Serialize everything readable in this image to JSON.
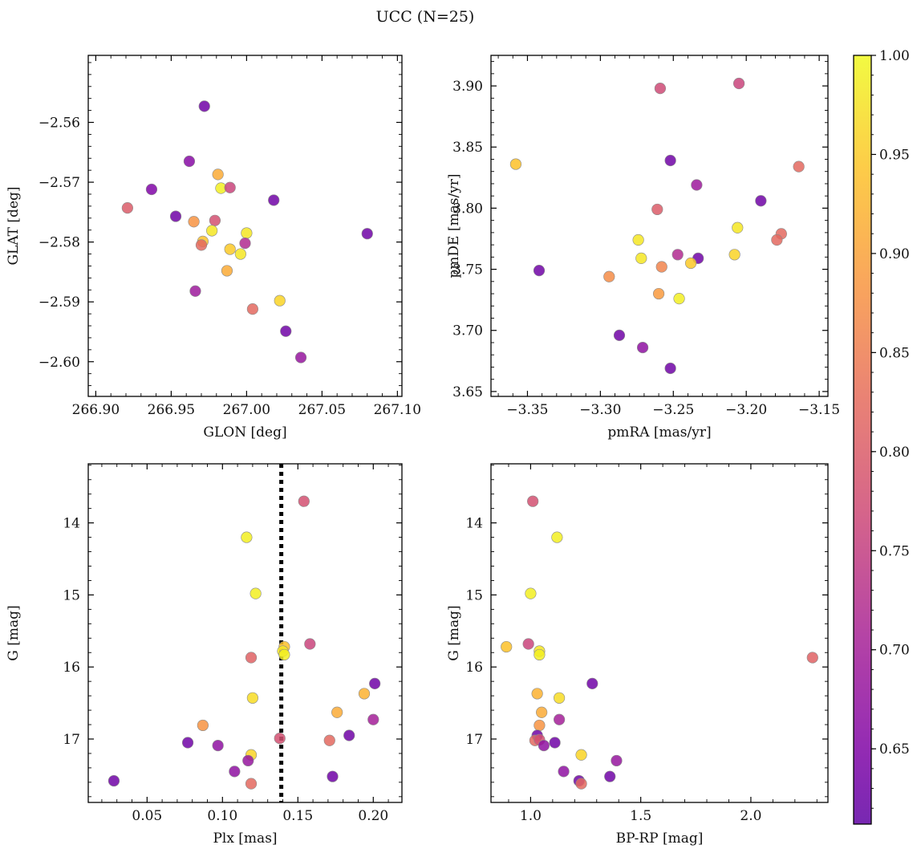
{
  "figure_title": "UCC (N=25)",
  "colorbar": {
    "range": [
      0.612,
      1.0
    ],
    "ticks": [
      0.65,
      0.7,
      0.75,
      0.8,
      0.85,
      0.9,
      0.95,
      1.0
    ],
    "tick_labels": [
      "0.65",
      "0.70",
      "0.75",
      "0.80",
      "0.85",
      "0.90",
      "0.95",
      "1.00"
    ],
    "colormap": "plasma"
  },
  "chart_data": [
    {
      "type": "scatter",
      "id": "glon-glat",
      "xlabel": "GLON [deg]",
      "ylabel": "GLAT [deg]",
      "xlim": [
        266.895,
        267.103
      ],
      "ylim": [
        -2.6058,
        -2.5488
      ],
      "xticks": [
        266.9,
        266.95,
        267.0,
        267.05,
        267.1
      ],
      "xtick_labels": [
        "266.90",
        "266.95",
        "267.00",
        "267.05",
        "267.10"
      ],
      "yticks": [
        -2.56,
        -2.57,
        -2.58,
        -2.59,
        -2.6
      ],
      "ytick_labels": [
        "−2.56",
        "−2.57",
        "−2.58",
        "−2.59",
        "−2.60"
      ],
      "points": [
        {
          "x": 266.972,
          "y": -2.5573,
          "c": 0.63
        },
        {
          "x": 266.962,
          "y": -2.5665,
          "c": 0.66
        },
        {
          "x": 266.937,
          "y": -2.5712,
          "c": 0.65
        },
        {
          "x": 266.921,
          "y": -2.5743,
          "c": 0.8
        },
        {
          "x": 266.981,
          "y": -2.5687,
          "c": 0.91
        },
        {
          "x": 266.983,
          "y": -2.571,
          "c": 0.99
        },
        {
          "x": 266.989,
          "y": -2.5709,
          "c": 0.76
        },
        {
          "x": 267.018,
          "y": -2.573,
          "c": 0.63
        },
        {
          "x": 266.953,
          "y": -2.5757,
          "c": 0.63
        },
        {
          "x": 266.965,
          "y": -2.5766,
          "c": 0.88
        },
        {
          "x": 266.979,
          "y": -2.5764,
          "c": 0.78
        },
        {
          "x": 266.977,
          "y": -2.5781,
          "c": 0.98
        },
        {
          "x": 267.0,
          "y": -2.5785,
          "c": 0.98
        },
        {
          "x": 266.971,
          "y": -2.5799,
          "c": 0.94
        },
        {
          "x": 266.97,
          "y": -2.5805,
          "c": 0.82
        },
        {
          "x": 266.999,
          "y": -2.5802,
          "c": 0.72
        },
        {
          "x": 266.989,
          "y": -2.5812,
          "c": 0.95
        },
        {
          "x": 266.996,
          "y": -2.582,
          "c": 0.98
        },
        {
          "x": 266.987,
          "y": -2.5848,
          "c": 0.91
        },
        {
          "x": 266.966,
          "y": -2.5882,
          "c": 0.69
        },
        {
          "x": 267.022,
          "y": -2.5898,
          "c": 0.96
        },
        {
          "x": 267.004,
          "y": -2.5912,
          "c": 0.82
        },
        {
          "x": 267.026,
          "y": -2.5949,
          "c": 0.63
        },
        {
          "x": 267.036,
          "y": -2.5993,
          "c": 0.68
        },
        {
          "x": 267.08,
          "y": -2.5786,
          "c": 0.63
        }
      ]
    },
    {
      "type": "scatter",
      "id": "pmra-pmde",
      "xlabel": "pmRA [mas/yr]",
      "ylabel": "pmDE [mas/yr]",
      "xlim": [
        -3.375,
        -3.144
      ],
      "ylim": [
        3.646,
        3.925
      ],
      "xticks": [
        -3.35,
        -3.3,
        -3.25,
        -3.2,
        -3.15
      ],
      "xtick_labels": [
        "−3.35",
        "−3.30",
        "−3.25",
        "−3.20",
        "−3.15"
      ],
      "yticks": [
        3.65,
        3.7,
        3.75,
        3.8,
        3.85,
        3.9
      ],
      "ytick_labels": [
        "3.65",
        "3.70",
        "3.75",
        "3.80",
        "3.85",
        "3.90"
      ],
      "points": [
        {
          "x": -3.259,
          "y": 3.898,
          "c": 0.77
        },
        {
          "x": -3.205,
          "y": 3.902,
          "c": 0.76
        },
        {
          "x": -3.358,
          "y": 3.836,
          "c": 0.94
        },
        {
          "x": -3.252,
          "y": 3.839,
          "c": 0.63
        },
        {
          "x": -3.164,
          "y": 3.834,
          "c": 0.82
        },
        {
          "x": -3.234,
          "y": 3.819,
          "c": 0.69
        },
        {
          "x": -3.19,
          "y": 3.806,
          "c": 0.63
        },
        {
          "x": -3.261,
          "y": 3.799,
          "c": 0.8
        },
        {
          "x": -3.206,
          "y": 3.784,
          "c": 0.98
        },
        {
          "x": -3.176,
          "y": 3.779,
          "c": 0.82
        },
        {
          "x": -3.179,
          "y": 3.774,
          "c": 0.82
        },
        {
          "x": -3.274,
          "y": 3.774,
          "c": 0.98
        },
        {
          "x": -3.247,
          "y": 3.762,
          "c": 0.72
        },
        {
          "x": -3.208,
          "y": 3.762,
          "c": 0.96
        },
        {
          "x": -3.272,
          "y": 3.759,
          "c": 0.98
        },
        {
          "x": -3.233,
          "y": 3.759,
          "c": 0.63
        },
        {
          "x": -3.238,
          "y": 3.755,
          "c": 0.95
        },
        {
          "x": -3.258,
          "y": 3.752,
          "c": 0.86
        },
        {
          "x": -3.342,
          "y": 3.749,
          "c": 0.63
        },
        {
          "x": -3.294,
          "y": 3.744,
          "c": 0.87
        },
        {
          "x": -3.26,
          "y": 3.73,
          "c": 0.89
        },
        {
          "x": -3.246,
          "y": 3.726,
          "c": 0.99
        },
        {
          "x": -3.287,
          "y": 3.696,
          "c": 0.63
        },
        {
          "x": -3.271,
          "y": 3.686,
          "c": 0.67
        },
        {
          "x": -3.252,
          "y": 3.669,
          "c": 0.63
        }
      ]
    },
    {
      "type": "scatter",
      "id": "plx-g",
      "xlabel": "Plx [mas]",
      "ylabel": "G [mag]",
      "xlim": [
        0.011,
        0.219
      ],
      "ylim": [
        17.88,
        13.18
      ],
      "y_inverted": true,
      "xticks": [
        0.05,
        0.1,
        0.15,
        0.2
      ],
      "xtick_labels": [
        "0.05",
        "0.10",
        "0.15",
        "0.20"
      ],
      "yticks": [
        14,
        15,
        16,
        17
      ],
      "ytick_labels": [
        "14",
        "15",
        "16",
        "17"
      ],
      "vline": {
        "x": 0.139,
        "style": "dotted"
      },
      "points": [
        {
          "x": 0.154,
          "y": 13.7,
          "c": 0.78
        },
        {
          "x": 0.116,
          "y": 14.2,
          "c": 0.99
        },
        {
          "x": 0.122,
          "y": 14.98,
          "c": 0.99
        },
        {
          "x": 0.141,
          "y": 15.72,
          "c": 0.94
        },
        {
          "x": 0.158,
          "y": 15.68,
          "c": 0.76
        },
        {
          "x": 0.14,
          "y": 15.78,
          "c": 0.98
        },
        {
          "x": 0.141,
          "y": 15.83,
          "c": 0.99
        },
        {
          "x": 0.119,
          "y": 15.87,
          "c": 0.81
        },
        {
          "x": 0.201,
          "y": 16.23,
          "c": 0.63
        },
        {
          "x": 0.194,
          "y": 16.37,
          "c": 0.92
        },
        {
          "x": 0.12,
          "y": 16.43,
          "c": 0.97
        },
        {
          "x": 0.176,
          "y": 16.63,
          "c": 0.91
        },
        {
          "x": 0.2,
          "y": 16.73,
          "c": 0.7
        },
        {
          "x": 0.087,
          "y": 16.81,
          "c": 0.88
        },
        {
          "x": 0.184,
          "y": 16.95,
          "c": 0.63
        },
        {
          "x": 0.138,
          "y": 16.99,
          "c": 0.78
        },
        {
          "x": 0.171,
          "y": 17.02,
          "c": 0.82
        },
        {
          "x": 0.077,
          "y": 17.05,
          "c": 0.63
        },
        {
          "x": 0.097,
          "y": 17.09,
          "c": 0.67
        },
        {
          "x": 0.119,
          "y": 17.22,
          "c": 0.96
        },
        {
          "x": 0.117,
          "y": 17.3,
          "c": 0.68
        },
        {
          "x": 0.108,
          "y": 17.45,
          "c": 0.67
        },
        {
          "x": 0.173,
          "y": 17.52,
          "c": 0.63
        },
        {
          "x": 0.028,
          "y": 17.58,
          "c": 0.63
        },
        {
          "x": 0.119,
          "y": 17.62,
          "c": 0.82
        }
      ]
    },
    {
      "type": "scatter",
      "id": "bprp-g",
      "xlabel": "BP-RP [mag]",
      "ylabel": "G [mag]",
      "xlim": [
        0.82,
        2.35
      ],
      "ylim": [
        17.88,
        13.18
      ],
      "y_inverted": true,
      "xticks": [
        1.0,
        1.5,
        2.0
      ],
      "xtick_labels": [
        "1.0",
        "1.5",
        "2.0"
      ],
      "yticks": [
        14,
        15,
        16,
        17
      ],
      "ytick_labels": [
        "14",
        "15",
        "16",
        "17"
      ],
      "points": [
        {
          "x": 1.01,
          "y": 13.7,
          "c": 0.78
        },
        {
          "x": 1.12,
          "y": 14.2,
          "c": 0.99
        },
        {
          "x": 1.0,
          "y": 14.98,
          "c": 0.99
        },
        {
          "x": 0.89,
          "y": 15.72,
          "c": 0.94
        },
        {
          "x": 0.99,
          "y": 15.68,
          "c": 0.76
        },
        {
          "x": 1.04,
          "y": 15.78,
          "c": 0.98
        },
        {
          "x": 1.04,
          "y": 15.83,
          "c": 0.99
        },
        {
          "x": 2.28,
          "y": 15.87,
          "c": 0.81
        },
        {
          "x": 1.28,
          "y": 16.23,
          "c": 0.63
        },
        {
          "x": 1.03,
          "y": 16.37,
          "c": 0.92
        },
        {
          "x": 1.13,
          "y": 16.43,
          "c": 0.97
        },
        {
          "x": 1.05,
          "y": 16.63,
          "c": 0.91
        },
        {
          "x": 1.13,
          "y": 16.73,
          "c": 0.7
        },
        {
          "x": 1.04,
          "y": 16.81,
          "c": 0.88
        },
        {
          "x": 1.03,
          "y": 16.95,
          "c": 0.63
        },
        {
          "x": 1.02,
          "y": 17.02,
          "c": 0.82
        },
        {
          "x": 1.04,
          "y": 17.01,
          "c": 0.78
        },
        {
          "x": 1.11,
          "y": 17.05,
          "c": 0.63
        },
        {
          "x": 1.06,
          "y": 17.09,
          "c": 0.67
        },
        {
          "x": 1.23,
          "y": 17.22,
          "c": 0.96
        },
        {
          "x": 1.39,
          "y": 17.3,
          "c": 0.68
        },
        {
          "x": 1.15,
          "y": 17.45,
          "c": 0.67
        },
        {
          "x": 1.36,
          "y": 17.52,
          "c": 0.63
        },
        {
          "x": 1.22,
          "y": 17.58,
          "c": 0.63
        },
        {
          "x": 1.23,
          "y": 17.62,
          "c": 0.82
        }
      ]
    }
  ]
}
